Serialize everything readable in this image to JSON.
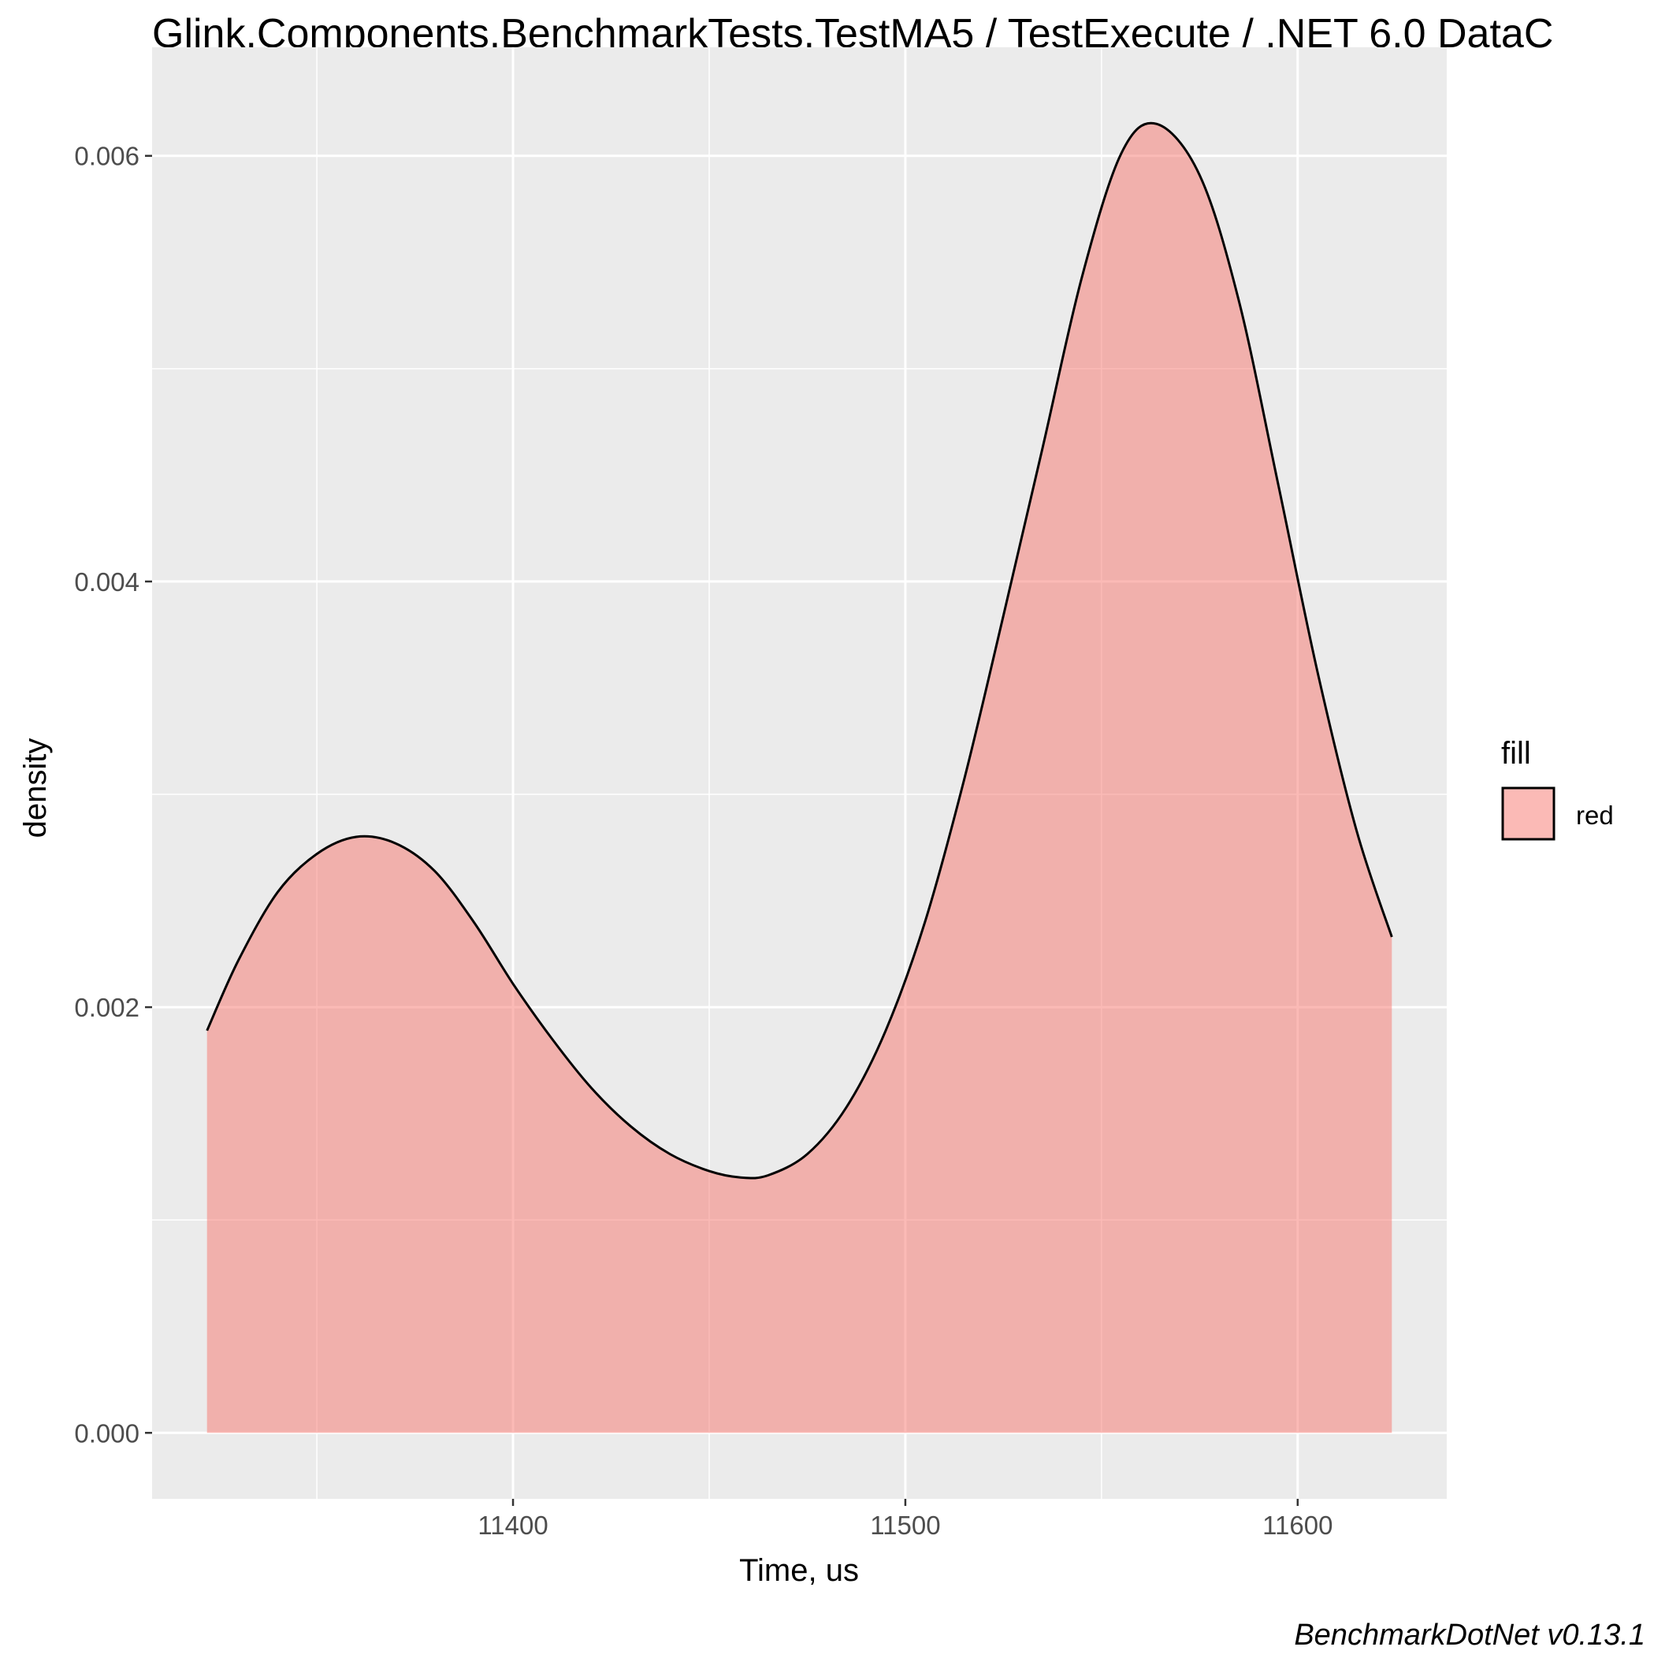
{
  "chart_data": {
    "type": "area",
    "title": "Glink.Components.BenchmarkTests.TestMA5 / TestExecute / .NET 6.0 DataC",
    "xlabel": "Time, us",
    "ylabel": "density",
    "caption": "BenchmarkDotNet v0.13.1",
    "xlim": [
      11308,
      11638
    ],
    "ylim": [
      -0.00031,
      0.00651
    ],
    "x_ticks": [
      11400,
      11500,
      11600
    ],
    "x_tick_labels": [
      "11400",
      "11500",
      "11600"
    ],
    "x_minor_ticks": [
      11350,
      11450,
      11550
    ],
    "y_ticks": [
      0.0,
      0.002,
      0.004,
      0.006
    ],
    "y_tick_labels": [
      "0.000",
      "0.002",
      "0.004",
      "0.006"
    ],
    "y_minor_ticks": [
      0.001,
      0.003,
      0.005
    ],
    "grid": true,
    "legend": {
      "title": "fill",
      "position": "right",
      "entries": [
        {
          "label": "red",
          "color": "#F8766D"
        }
      ]
    },
    "colors": {
      "panel_background": "#EBEBEB",
      "grid_line": "#FFFFFF",
      "fill": "#F8766D",
      "fill_opacity": 0.5,
      "outline": "#000000",
      "axis_text": "#4D4D4D"
    },
    "series": [
      {
        "x": [
          11322,
          11330,
          11340,
          11350,
          11360,
          11370,
          11380,
          11390,
          11400,
          11410,
          11420,
          11430,
          11440,
          11450,
          11458,
          11465,
          11475,
          11485,
          11495,
          11505,
          11515,
          11525,
          11535,
          11545,
          11555,
          11564,
          11575,
          11585,
          11595,
          11605,
          11615,
          11624
        ],
        "y": [
          0.00189,
          0.00222,
          0.00254,
          0.00272,
          0.0028,
          0.00277,
          0.00264,
          0.0024,
          0.00211,
          0.00185,
          0.00162,
          0.00144,
          0.00131,
          0.00123,
          0.0012,
          0.00121,
          0.00131,
          0.00153,
          0.00189,
          0.0024,
          0.00307,
          0.00384,
          0.00463,
          0.00543,
          0.00601,
          0.00615,
          0.00591,
          0.00532,
          0.00446,
          0.00358,
          0.00283,
          0.00233
        ]
      }
    ]
  }
}
